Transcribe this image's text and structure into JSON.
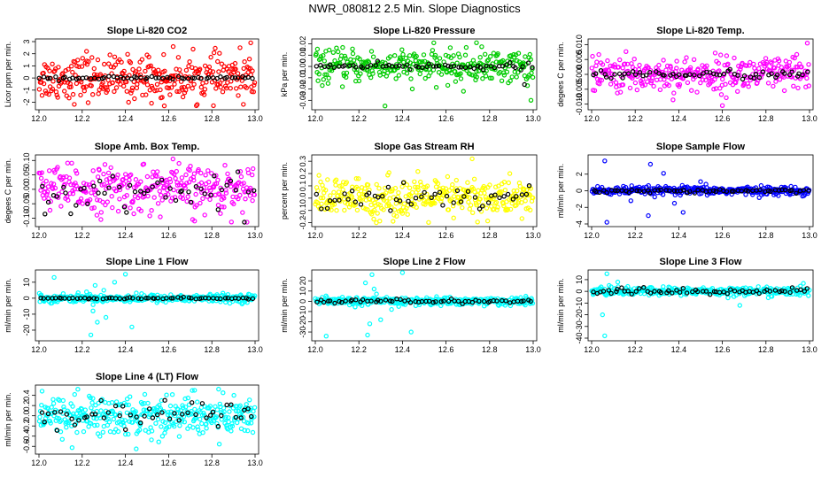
{
  "figure_title": "NWR_080812  2.5 Min. Slope Diagnostics",
  "colors": {
    "red": "#ff0000",
    "green": "#00cc00",
    "magenta": "#ff00ff",
    "yellow": "#ffff00",
    "blue": "#0000ff",
    "cyan": "#00ffff",
    "black": "#000000"
  },
  "chart_data": [
    {
      "type": "scatter",
      "title": "Slope Li-820 CO2",
      "ylabel": "Licor ppm per min.",
      "xlim": [
        12.0,
        13.0
      ],
      "ylim": [
        -2.4,
        3.0
      ],
      "xticks": [
        "12.0",
        "12.2",
        "12.4",
        "12.6",
        "12.8",
        "13.0"
      ],
      "yticks": [
        "-2",
        "-1",
        "0",
        "1",
        "2",
        "3"
      ],
      "grid": false,
      "zero_line": true,
      "series": [
        {
          "color": "red",
          "spread": 0.9,
          "n": 320,
          "outliers": [
            [
              12.58,
              -2.3
            ],
            [
              12.57,
              -1.6
            ],
            [
              12.98,
              2.9
            ],
            [
              12.22,
              2.2
            ],
            [
              12.5,
              1.9
            ]
          ]
        },
        {
          "color": "black",
          "spread": 0.08,
          "n": 60,
          "outliers": []
        }
      ]
    },
    {
      "type": "scatter",
      "title": "Slope Li-820 Pressure",
      "ylabel": "kPa per min.",
      "xlim": [
        12.0,
        13.0
      ],
      "ylim": [
        -0.036,
        0.022
      ],
      "xticks": [
        "12.0",
        "12.2",
        "12.4",
        "12.6",
        "12.8",
        "13.0"
      ],
      "yticks": [
        "-0.03",
        "-0.02",
        "-0.01",
        "0.00",
        "0.01",
        "0.02"
      ],
      "grid": false,
      "zero_line": true,
      "series": [
        {
          "color": "green",
          "spread": 0.007,
          "n": 320,
          "outliers": [
            [
              12.32,
              -0.035
            ],
            [
              12.74,
              0.021
            ],
            [
              12.99,
              -0.03
            ],
            [
              12.68,
              -0.022
            ]
          ]
        },
        {
          "color": "black",
          "spread": 0.0015,
          "n": 60,
          "outliers": [
            [
              12.96,
              -0.016
            ]
          ]
        }
      ]
    },
    {
      "type": "scatter",
      "title": "Slope Li-820 Temp.",
      "ylabel": "degees C per min.",
      "xlim": [
        12.0,
        13.0
      ],
      "ylim": [
        -0.011,
        0.011
      ],
      "xticks": [
        "12.0",
        "12.2",
        "12.4",
        "12.6",
        "12.8",
        "13.0"
      ],
      "yticks": [
        "-0.010",
        "-0.005",
        "0.000",
        "0.005",
        "0.010"
      ],
      "grid": false,
      "zero_line": true,
      "series": [
        {
          "color": "magenta",
          "spread": 0.003,
          "n": 320,
          "outliers": [
            [
              12.6,
              -0.0105
            ],
            [
              12.99,
              0.0105
            ]
          ]
        },
        {
          "color": "black",
          "spread": 0.0008,
          "n": 60,
          "outliers": []
        }
      ]
    },
    {
      "type": "scatter",
      "title": "Slope Amb. Box Temp.",
      "ylabel": "degees C per min.",
      "xlim": [
        12.0,
        13.0
      ],
      "ylim": [
        -0.12,
        0.11
      ],
      "xticks": [
        "12.0",
        "12.2",
        "12.4",
        "12.6",
        "12.8",
        "13.0"
      ],
      "yticks": [
        "-0.10",
        "-0.05",
        "0.00",
        "0.05",
        "0.10"
      ],
      "grid": false,
      "zero_line": true,
      "series": [
        {
          "color": "magenta",
          "spread": 0.04,
          "n": 320,
          "outliers": [
            [
              12.62,
              0.105
            ],
            [
              12.72,
              -0.11
            ]
          ]
        },
        {
          "color": "black",
          "spread": 0.04,
          "n": 50,
          "outliers": []
        }
      ]
    },
    {
      "type": "scatter",
      "title": "Slope Gas Stream RH",
      "ylabel": "percent per min.",
      "xlim": [
        12.0,
        13.0
      ],
      "ylim": [
        -0.21,
        0.33
      ],
      "xticks": [
        "12.0",
        "12.2",
        "12.4",
        "12.6",
        "12.8",
        "13.0"
      ],
      "yticks": [
        "-0.2",
        "-0.1",
        "0.0",
        "0.1",
        "0.2",
        "0.3"
      ],
      "grid": false,
      "zero_line": false,
      "series": [
        {
          "color": "yellow",
          "spread": 0.08,
          "n": 360,
          "outliers": [
            [
              12.72,
              0.32
            ],
            [
              12.28,
              -0.2
            ]
          ]
        },
        {
          "color": "black",
          "spread": 0.07,
          "n": 50,
          "outliers": []
        }
      ]
    },
    {
      "type": "scatter",
      "title": "Slope Sample Flow",
      "ylabel": "ml/min per min.",
      "xlim": [
        12.0,
        13.0
      ],
      "ylim": [
        -4.0,
        4.0
      ],
      "xticks": [
        "12.0",
        "12.2",
        "12.4",
        "12.6",
        "12.8",
        "13.0"
      ],
      "yticks": [
        "-4",
        "-2",
        "0",
        "2"
      ],
      "grid": false,
      "zero_line": true,
      "series": [
        {
          "color": "blue",
          "spread": 0.25,
          "n": 340,
          "outliers": [
            [
              12.06,
              3.6
            ],
            [
              12.07,
              -3.8
            ],
            [
              12.27,
              3.2
            ],
            [
              12.33,
              2.1
            ],
            [
              12.26,
              -3.0
            ],
            [
              12.38,
              -1.5
            ],
            [
              12.42,
              -2.6
            ],
            [
              12.18,
              -1.2
            ],
            [
              12.5,
              1.1
            ]
          ]
        },
        {
          "color": "black",
          "spread": 0.15,
          "n": 60,
          "outliers": []
        }
      ]
    },
    {
      "type": "scatter",
      "title": "Slope Line 1 Flow",
      "ylabel": "ml/min per min.",
      "xlim": [
        12.0,
        13.0
      ],
      "ylim": [
        -25,
        16
      ],
      "xticks": [
        "12.0",
        "12.2",
        "12.4",
        "12.6",
        "12.8",
        "13.0"
      ],
      "yticks": [
        "-20",
        "-10",
        "0",
        "10"
      ],
      "grid": false,
      "zero_line": true,
      "series": [
        {
          "color": "cyan",
          "spread": 1.2,
          "n": 340,
          "outliers": [
            [
              12.07,
              13
            ],
            [
              12.24,
              -23
            ],
            [
              12.26,
              8
            ],
            [
              12.25,
              -8
            ],
            [
              12.3,
              5
            ],
            [
              12.35,
              10
            ],
            [
              12.4,
              15
            ],
            [
              12.43,
              -18
            ],
            [
              12.22,
              4
            ],
            [
              12.31,
              -12
            ],
            [
              12.27,
              -15
            ]
          ]
        },
        {
          "color": "black",
          "spread": 0.3,
          "n": 60,
          "outliers": []
        }
      ]
    },
    {
      "type": "scatter",
      "title": "Slope Line 2 Flow",
      "ylabel": "ml/min per min.",
      "xlim": [
        12.0,
        13.0
      ],
      "ylim": [
        -36,
        28
      ],
      "xticks": [
        "12.0",
        "12.2",
        "12.4",
        "12.6",
        "12.8",
        "13.0"
      ],
      "yticks": [
        "-30",
        "-20",
        "-10",
        "0",
        "10",
        "20"
      ],
      "grid": false,
      "zero_line": true,
      "series": [
        {
          "color": "cyan",
          "spread": 2.0,
          "n": 340,
          "outliers": [
            [
              12.05,
              -34
            ],
            [
              12.23,
              18
            ],
            [
              12.24,
              -33
            ],
            [
              12.26,
              26
            ],
            [
              12.3,
              -18
            ],
            [
              12.35,
              -8
            ],
            [
              12.4,
              28
            ],
            [
              12.44,
              -30
            ],
            [
              12.27,
              12
            ],
            [
              12.25,
              -22
            ]
          ]
        },
        {
          "color": "black",
          "spread": 1.0,
          "n": 60,
          "outliers": []
        }
      ]
    },
    {
      "type": "scatter",
      "title": "Slope Line 3 Flow",
      "ylabel": "ml/min per min.",
      "xlim": [
        12.0,
        13.0
      ],
      "ylim": [
        -40,
        16
      ],
      "xticks": [
        "12.0",
        "12.2",
        "12.4",
        "12.6",
        "12.8",
        "13.0"
      ],
      "yticks": [
        "-40",
        "-30",
        "-20",
        "-10",
        "0",
        "10"
      ],
      "grid": false,
      "zero_line": false,
      "series": [
        {
          "color": "cyan",
          "spread": 1.8,
          "n": 340,
          "outliers": [
            [
              12.07,
              15
            ],
            [
              12.06,
              -38
            ],
            [
              12.08,
              5
            ],
            [
              12.05,
              -20
            ],
            [
              12.68,
              -12
            ],
            [
              12.12,
              8
            ]
          ]
        },
        {
          "color": "black",
          "spread": 1.8,
          "n": 60,
          "outliers": []
        }
      ]
    },
    {
      "type": "scatter",
      "title": "Slope Line 4 (LT) Flow",
      "ylabel": "ml/min per min.",
      "xlim": [
        12.0,
        13.0
      ],
      "ylim": [
        -0.7,
        0.55
      ],
      "xticks": [
        "12.0",
        "12.2",
        "12.4",
        "12.6",
        "12.8",
        "13.0"
      ],
      "yticks": [
        "-0.6",
        "-0.4",
        "-0.2",
        "0.0",
        "0.2",
        "0.4"
      ],
      "grid": false,
      "zero_line": false,
      "series": [
        {
          "color": "cyan",
          "spread": 0.2,
          "n": 360,
          "outliers": [
            [
              12.18,
              0.52
            ],
            [
              12.45,
              -0.65
            ],
            [
              12.72,
              0.5
            ]
          ]
        },
        {
          "color": "black",
          "spread": 0.2,
          "n": 50,
          "outliers": []
        }
      ]
    }
  ]
}
